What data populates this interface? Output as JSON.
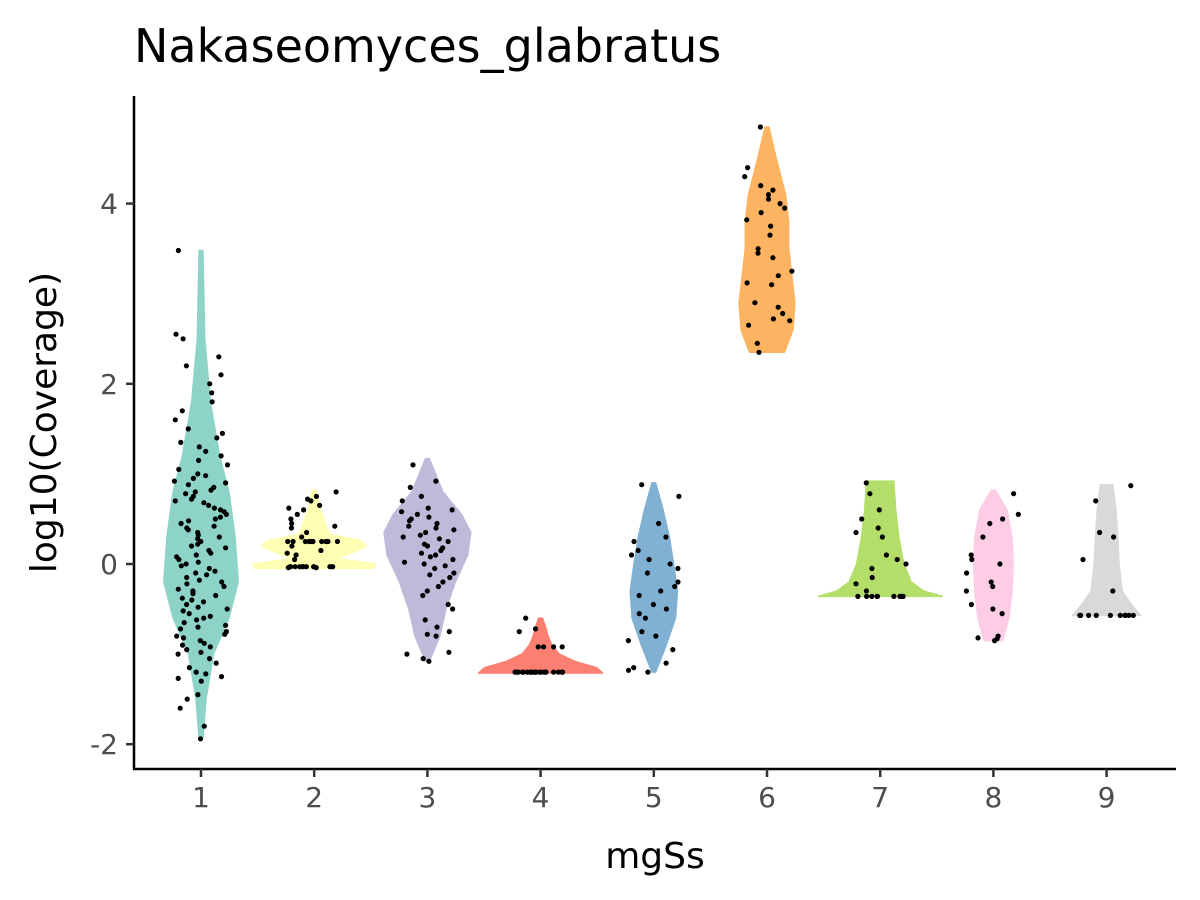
{
  "chart_data": {
    "type": "violin",
    "title": "Nakaseomyces_glabratus",
    "xlabel": "mgSs",
    "ylabel": "log10(Coverage)",
    "categories": [
      "1",
      "2",
      "3",
      "4",
      "5",
      "6",
      "7",
      "8",
      "9"
    ],
    "y_ticks": [
      -2,
      0,
      2,
      4
    ],
    "y_tick_labels": [
      "-2",
      "0",
      "2",
      "4"
    ],
    "ylim": [
      -2.2,
      5.2
    ],
    "grid": false,
    "legend": "none",
    "violins": [
      {
        "category": "1",
        "color": "#8DD3C7",
        "y_min": -1.93,
        "y_max": 3.48,
        "profile": [
          [
            -1.93,
            0.0
          ],
          [
            -1.5,
            0.08
          ],
          [
            -1.0,
            0.2
          ],
          [
            -0.6,
            0.45
          ],
          [
            -0.2,
            0.6
          ],
          [
            0.3,
            0.55
          ],
          [
            0.8,
            0.45
          ],
          [
            1.2,
            0.3
          ],
          [
            1.8,
            0.15
          ],
          [
            2.5,
            0.06
          ],
          [
            3.48,
            0.0
          ]
        ]
      },
      {
        "category": "2",
        "color": "#FFFFB3",
        "y_min": -0.05,
        "y_max": 0.82,
        "profile": [
          [
            -0.05,
            0.95
          ],
          [
            0.0,
            1.0
          ],
          [
            0.06,
            0.35
          ],
          [
            0.12,
            0.6
          ],
          [
            0.2,
            0.85
          ],
          [
            0.26,
            0.75
          ],
          [
            0.33,
            0.25
          ],
          [
            0.45,
            0.18
          ],
          [
            0.6,
            0.1
          ],
          [
            0.82,
            0.0
          ]
        ]
      },
      {
        "category": "3",
        "color": "#BEBADA",
        "y_min": -1.08,
        "y_max": 1.17,
        "profile": [
          [
            -1.08,
            0.0
          ],
          [
            -0.8,
            0.2
          ],
          [
            -0.5,
            0.3
          ],
          [
            -0.2,
            0.45
          ],
          [
            0.1,
            0.65
          ],
          [
            0.35,
            0.7
          ],
          [
            0.55,
            0.55
          ],
          [
            0.8,
            0.25
          ],
          [
            1.17,
            0.0
          ]
        ]
      },
      {
        "category": "4",
        "color": "#FB8072",
        "y_min": -1.21,
        "y_max": -0.6,
        "profile": [
          [
            -1.21,
            1.0
          ],
          [
            -1.15,
            0.9
          ],
          [
            -1.08,
            0.55
          ],
          [
            -1.0,
            0.3
          ],
          [
            -0.9,
            0.18
          ],
          [
            -0.8,
            0.12
          ],
          [
            -0.7,
            0.08
          ],
          [
            -0.6,
            0.0
          ]
        ]
      },
      {
        "category": "5",
        "color": "#80B1D3",
        "y_min": -1.2,
        "y_max": 0.9,
        "profile": [
          [
            -1.2,
            0.0
          ],
          [
            -0.9,
            0.2
          ],
          [
            -0.6,
            0.35
          ],
          [
            -0.3,
            0.38
          ],
          [
            0.0,
            0.32
          ],
          [
            0.3,
            0.25
          ],
          [
            0.6,
            0.15
          ],
          [
            0.9,
            0.0
          ]
        ]
      },
      {
        "category": "6",
        "color": "#FDB462",
        "y_min": 2.35,
        "y_max": 4.85,
        "profile": [
          [
            2.35,
            0.28
          ],
          [
            2.6,
            0.42
          ],
          [
            2.9,
            0.45
          ],
          [
            3.2,
            0.4
          ],
          [
            3.5,
            0.35
          ],
          [
            3.8,
            0.35
          ],
          [
            4.1,
            0.3
          ],
          [
            4.5,
            0.15
          ],
          [
            4.85,
            0.0
          ]
        ]
      },
      {
        "category": "7",
        "color": "#B3DE69",
        "y_min": -0.36,
        "y_max": 0.92,
        "profile": [
          [
            -0.36,
            1.0
          ],
          [
            -0.3,
            0.7
          ],
          [
            -0.2,
            0.5
          ],
          [
            0.0,
            0.38
          ],
          [
            0.3,
            0.3
          ],
          [
            0.6,
            0.25
          ],
          [
            0.92,
            0.22
          ]
        ]
      },
      {
        "category": "8",
        "color": "#FCCDE5",
        "y_min": -0.85,
        "y_max": 0.82,
        "profile": [
          [
            -0.85,
            0.15
          ],
          [
            -0.6,
            0.25
          ],
          [
            -0.3,
            0.3
          ],
          [
            0.0,
            0.32
          ],
          [
            0.3,
            0.3
          ],
          [
            0.6,
            0.22
          ],
          [
            0.82,
            0.0
          ]
        ]
      },
      {
        "category": "9",
        "color": "#D9D9D9",
        "y_min": -0.57,
        "y_max": 0.88,
        "profile": [
          [
            -0.57,
            0.55
          ],
          [
            -0.45,
            0.4
          ],
          [
            -0.3,
            0.25
          ],
          [
            0.0,
            0.2
          ],
          [
            0.3,
            0.18
          ],
          [
            0.6,
            0.15
          ],
          [
            0.88,
            0.1
          ]
        ]
      }
    ],
    "points": [
      {
        "category": "1",
        "y": [
          -1.94,
          -1.8,
          -1.6,
          -1.5,
          -1.45,
          -1.3,
          -1.27,
          -1.25,
          -1.22,
          -1.2,
          -1.15,
          -1.1,
          -1.05,
          -1.0,
          -0.98,
          -0.95,
          -0.92,
          -0.9,
          -0.88,
          -0.85,
          -0.82,
          -0.8,
          -0.78,
          -0.75,
          -0.72,
          -0.7,
          -0.68,
          -0.65,
          -0.62,
          -0.6,
          -0.58,
          -0.55,
          -0.52,
          -0.5,
          -0.48,
          -0.45,
          -0.42,
          -0.4,
          -0.38,
          -0.35,
          -0.33,
          -0.3,
          -0.28,
          -0.25,
          -0.22,
          -0.2,
          -0.18,
          -0.15,
          -0.12,
          -0.1,
          -0.08,
          -0.05,
          -0.02,
          0.0,
          0.02,
          0.05,
          0.08,
          0.1,
          0.12,
          0.15,
          0.18,
          0.2,
          0.22,
          0.25,
          0.28,
          0.3,
          0.32,
          0.35,
          0.38,
          0.4,
          0.42,
          0.45,
          0.48,
          0.5,
          0.52,
          0.55,
          0.58,
          0.6,
          0.62,
          0.65,
          0.68,
          0.7,
          0.72,
          0.75,
          0.78,
          0.8,
          0.82,
          0.85,
          0.88,
          0.9,
          0.92,
          0.95,
          0.98,
          1.0,
          1.05,
          1.1,
          1.15,
          1.2,
          1.25,
          1.3,
          1.35,
          1.4,
          1.45,
          1.5,
          1.6,
          1.7,
          1.8,
          1.9,
          2.0,
          2.1,
          2.2,
          2.3,
          2.5,
          2.55,
          3.48
        ]
      },
      {
        "category": "2",
        "y": [
          -0.04,
          -0.04,
          -0.03,
          -0.03,
          -0.03,
          -0.03,
          -0.03,
          -0.03,
          -0.03,
          -0.03,
          -0.03,
          -0.03,
          -0.03,
          -0.03,
          0.05,
          0.1,
          0.12,
          0.15,
          0.2,
          0.25,
          0.25,
          0.25,
          0.25,
          0.25,
          0.25,
          0.25,
          0.25,
          0.25,
          0.25,
          0.25,
          0.25,
          0.3,
          0.35,
          0.4,
          0.42,
          0.45,
          0.5,
          0.55,
          0.6,
          0.62,
          0.65,
          0.7,
          0.72,
          0.75,
          0.8
        ]
      },
      {
        "category": "3",
        "y": [
          -1.08,
          -1.05,
          -1.0,
          -0.98,
          -0.8,
          -0.78,
          -0.75,
          -0.7,
          -0.62,
          -0.5,
          -0.45,
          -0.35,
          -0.3,
          -0.25,
          -0.2,
          -0.15,
          -0.12,
          -0.1,
          -0.05,
          -0.02,
          0.0,
          0.02,
          0.05,
          0.08,
          0.1,
          0.12,
          0.15,
          0.18,
          0.2,
          0.22,
          0.25,
          0.28,
          0.3,
          0.32,
          0.35,
          0.38,
          0.4,
          0.42,
          0.45,
          0.48,
          0.5,
          0.52,
          0.55,
          0.58,
          0.6,
          0.62,
          0.7,
          0.75,
          0.85,
          0.92,
          1.1
        ]
      },
      {
        "category": "4",
        "y": [
          -1.2,
          -1.2,
          -1.2,
          -1.2,
          -1.2,
          -1.2,
          -1.2,
          -1.2,
          -1.2,
          -1.2,
          -1.2,
          -1.2,
          -1.2,
          -1.2,
          -1.2,
          -1.2,
          -1.2,
          -1.2,
          -1.2,
          -1.2,
          -0.92,
          -0.92,
          -0.92,
          -0.92,
          -0.75,
          -0.72,
          -0.6
        ]
      },
      {
        "category": "5",
        "y": [
          -1.2,
          -1.18,
          -1.15,
          -1.1,
          -0.95,
          -0.85,
          -0.8,
          -0.75,
          -0.6,
          -0.55,
          -0.5,
          -0.45,
          -0.35,
          -0.3,
          -0.25,
          -0.2,
          -0.1,
          -0.05,
          0.0,
          0.05,
          0.1,
          0.15,
          0.25,
          0.3,
          0.45,
          0.75,
          0.88
        ]
      },
      {
        "category": "6",
        "y": [
          2.35,
          2.45,
          2.65,
          2.7,
          2.72,
          2.78,
          2.85,
          2.9,
          3.1,
          3.12,
          3.2,
          3.25,
          3.4,
          3.45,
          3.5,
          3.65,
          3.75,
          3.82,
          3.9,
          3.95,
          4.0,
          4.05,
          4.1,
          4.15,
          4.2,
          4.3,
          4.4,
          4.85
        ]
      },
      {
        "category": "7",
        "y": [
          -0.36,
          -0.36,
          -0.36,
          -0.36,
          -0.36,
          -0.36,
          -0.36,
          -0.36,
          -0.36,
          -0.36,
          -0.3,
          -0.22,
          -0.15,
          -0.05,
          0.0,
          0.05,
          0.1,
          0.3,
          0.35,
          0.4,
          0.5,
          0.6,
          0.78,
          0.9
        ]
      },
      {
        "category": "8",
        "y": [
          -0.85,
          -0.83,
          -0.82,
          -0.8,
          -0.55,
          -0.5,
          -0.45,
          -0.3,
          -0.25,
          -0.2,
          -0.1,
          0.0,
          0.05,
          0.1,
          0.3,
          0.45,
          0.5,
          0.55,
          0.78
        ]
      },
      {
        "category": "9",
        "y": [
          -0.57,
          -0.57,
          -0.57,
          -0.57,
          -0.57,
          -0.57,
          -0.57,
          -0.57,
          -0.57,
          -0.57,
          -0.3,
          0.05,
          0.3,
          0.35,
          0.7,
          0.87
        ]
      }
    ]
  }
}
